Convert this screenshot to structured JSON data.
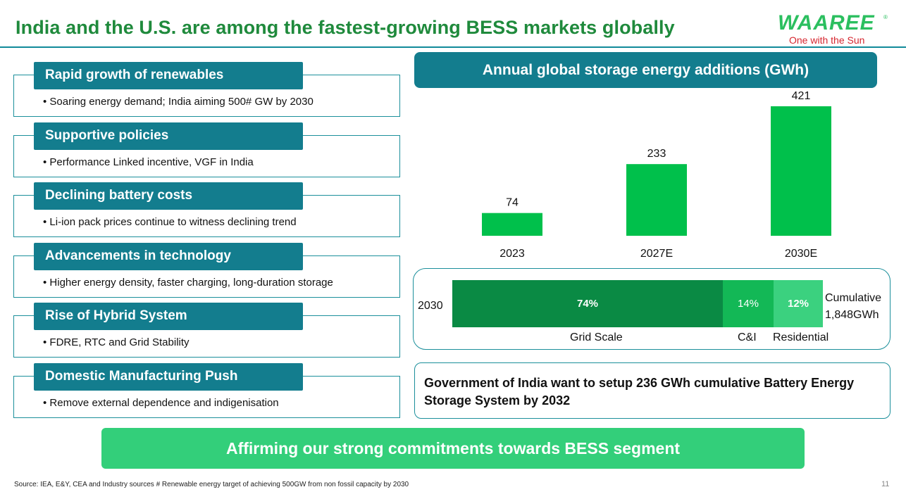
{
  "header": {
    "title": "India and the U.S. are among the fastest-growing BESS markets globally",
    "logo_word": "WAAREE",
    "logo_reg": "®",
    "logo_tagline": "One with the Sun"
  },
  "drivers": [
    {
      "heading": "Rapid growth of renewables",
      "text": "• Soaring energy demand;  India aiming 500# GW by 2030"
    },
    {
      "heading": "Supportive policies",
      "text": "• Performance Linked incentive, VGF in India"
    },
    {
      "heading": "Declining battery costs",
      "text": "• Li-ion pack prices continue to witness declining trend"
    },
    {
      "heading": "Advancements in technology",
      "text": "• Higher energy density, faster charging, long-duration storage"
    },
    {
      "heading": "Rise of Hybrid System",
      "text": "• FDRE, RTC and Grid Stability"
    },
    {
      "heading": "Domestic Manufacturing Push",
      "text": "• Remove external dependence and indigenisation"
    }
  ],
  "chart_data": {
    "type": "bar",
    "title": "Annual global storage energy additions (GWh)",
    "categories": [
      "2023",
      "2027E",
      "2030E"
    ],
    "values": [
      74,
      233,
      421
    ],
    "ylabel": "GWh",
    "xlabel": "",
    "ylim": [
      0,
      421
    ],
    "grid": false,
    "color": "#00c04b"
  },
  "mix": {
    "year": "2030",
    "segments": [
      {
        "label": "Grid Scale",
        "percent_text": "74%",
        "value": 74,
        "color": "#0a8a44"
      },
      {
        "label": "C&I",
        "percent_text": "14%",
        "value": 14,
        "color": "#13b856"
      },
      {
        "label": "Residential",
        "percent_text": "12%",
        "value": 12,
        "color": "#3bd17f"
      }
    ],
    "cumulative_line1": "Cumulative",
    "cumulative_line2": "1,848GWh"
  },
  "government_note": "Government of India want to setup 236 GWh cumulative Battery Energy Storage System by 2032",
  "affirm_banner": "Affirming our strong commitments towards BESS segment",
  "footer": {
    "source": "Source: IEA, E&Y, CEA and Industry sources  # Renewable energy target of achieving 500GW from non fossil capacity by 2030",
    "page_number": "11"
  },
  "colors": {
    "teal": "#137d8e",
    "title_green": "#1f8a3c",
    "banner_green": "#33cf7a",
    "logo_red": "#d6262f"
  }
}
